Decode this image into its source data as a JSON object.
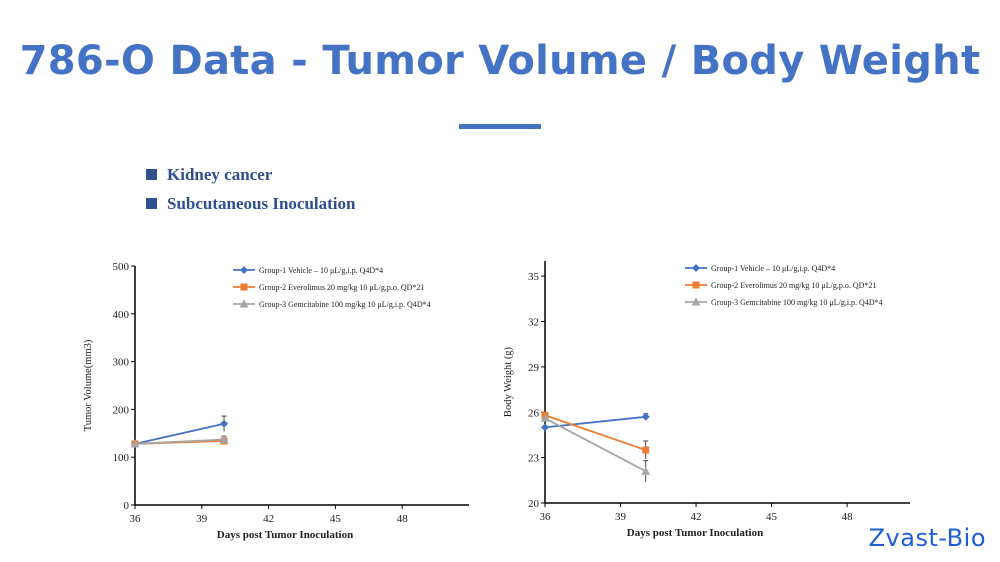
{
  "slide": {
    "title": "786-O Data - Tumor Volume / Body Weight",
    "bullets": [
      "Kidney cancer",
      "Subcutaneous Inoculation"
    ],
    "brand": "Zvast-Bio",
    "accent_color": "#4472c4",
    "bullet_color": "#2f4f8f",
    "brand_color": "#1f5fd6"
  },
  "chart_data": [
    {
      "type": "line",
      "title": "",
      "xlabel": "Days post Tumor Inoculation",
      "ylabel": "Tumor Volume(mm3)",
      "xlim": [
        36,
        51
      ],
      "ylim": [
        0,
        500
      ],
      "xticks": [
        36,
        39,
        42,
        45,
        48
      ],
      "yticks": [
        0,
        100,
        200,
        300,
        400,
        500
      ],
      "grid": false,
      "legend_position": "top-right",
      "series": [
        {
          "name": "Group-1 Vehicle – 10 μL/g,i.p. Q4D*4",
          "color": "#4472c4",
          "marker": "diamond",
          "x": [
            36,
            40
          ],
          "y": [
            128,
            170
          ],
          "error": [
            null,
            16
          ]
        },
        {
          "name": "Group-2 Everolimus 20 mg/kg 10 μL/g,p.o. QD*21",
          "color": "#ed7d31",
          "marker": "square",
          "x": [
            36,
            40
          ],
          "y": [
            128,
            134
          ],
          "error": [
            null,
            null
          ]
        },
        {
          "name": "Group-3 Gemcitabine 100 mg/kg 10 μL/g,i.p. Q4D*4",
          "color": "#a5a5a5",
          "marker": "triangle",
          "x": [
            36,
            40
          ],
          "y": [
            128,
            137
          ],
          "error": [
            null,
            7
          ]
        }
      ]
    },
    {
      "type": "line",
      "title": "",
      "xlabel": "Days post Tumor Inoculation",
      "ylabel": "Body Weight (g)",
      "xlim": [
        36,
        50.5
      ],
      "ylim": [
        20,
        36
      ],
      "xticks": [
        36,
        39,
        42,
        45,
        48
      ],
      "yticks": [
        20,
        23,
        26,
        29,
        32,
        35
      ],
      "grid": false,
      "legend_position": "top-right",
      "series": [
        {
          "name": "Group-1 Vehicle – 10 μL/g,i.p. Q4D*4",
          "color": "#4472c4",
          "marker": "diamond",
          "x": [
            36,
            40
          ],
          "y": [
            25.0,
            25.7
          ],
          "error": [
            null,
            0.2
          ]
        },
        {
          "name": "Group-2 Everolimus 20 mg/kg 10 μL/g,p.o. QD*21",
          "color": "#ed7d31",
          "marker": "square",
          "x": [
            36,
            40
          ],
          "y": [
            25.8,
            23.5
          ],
          "error": [
            null,
            0.6
          ]
        },
        {
          "name": "Group-3 Gemcitabine 100 mg/kg 10 μL/g,i.p. Q4D*4",
          "color": "#a5a5a5",
          "marker": "triangle",
          "x": [
            36,
            40
          ],
          "y": [
            25.6,
            22.1
          ],
          "error": [
            null,
            0.7
          ]
        }
      ]
    }
  ]
}
